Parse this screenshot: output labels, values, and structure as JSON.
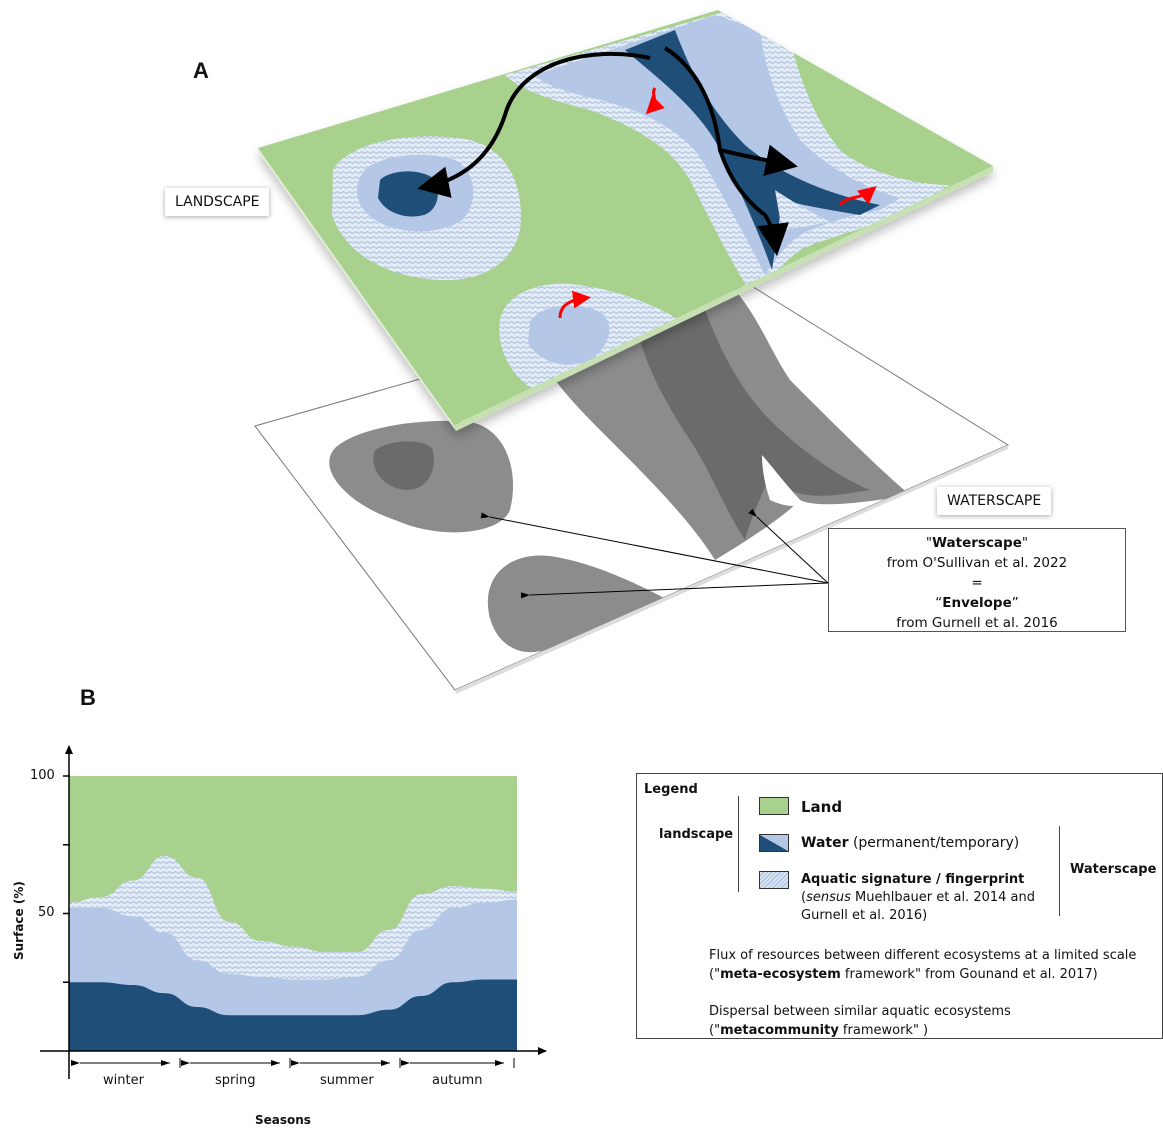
{
  "panels": {
    "a": "A",
    "b": "B"
  },
  "labels": {
    "landscape": "LANDSCAPE",
    "waterscape": "WATERSCAPE"
  },
  "quote": {
    "line1_bold": "Waterscape",
    "line2": "from O'Sullivan et al. 2022",
    "line3": "=",
    "line4_bold": "Envelope",
    "line5": "from Gurnell et al. 2016"
  },
  "colors": {
    "land": "#a9d18e",
    "water_permanent": "#1f4e79",
    "water_temporary": "#b4c7e7",
    "flux_arrow": "#ff0000",
    "dispersal_arrow": "#000000",
    "waterscape_gray": "#8c8c8c"
  },
  "legend": {
    "title": "Legend",
    "group_landscape": "landscape",
    "group_waterscape": "Waterscape",
    "land": "Land",
    "water_bold": "Water",
    "water_rest": "(permanent/temporary)",
    "aquatic_bold": "Aquatic signature / fingerprint",
    "aquatic_sensus": "sensus",
    "aquatic_rest1": "Muehlbauer et al. 2014 and",
    "aquatic_rest2": "Gurnell et al. 2016)",
    "flux_line1": "Flux of resources between different ecosystems at a limited scale",
    "flux_line2_pre": "(\"",
    "flux_line2_bold": "meta-ecosystem",
    "flux_line2_post": " framework\" from Gounand et al. 2017)",
    "dispersal_line1": "Dispersal between similar aquatic ecosystems",
    "dispersal_line2_pre": "(\"",
    "dispersal_line2_bold": "metacommunity",
    "dispersal_line2_post": " framework\" )"
  },
  "chart_data": {
    "type": "area",
    "ylabel": "Surface (%)",
    "xlabel": "Seasons",
    "yticks": [
      "100",
      "50"
    ],
    "ylim": [
      0,
      100
    ],
    "categories": [
      "winter",
      "spring",
      "summer",
      "autumn"
    ],
    "series": [
      {
        "name": "Water (permanent)",
        "color": "#1f4e79",
        "top_values": [
          25,
          25,
          24,
          21,
          16,
          13,
          13,
          13,
          13,
          13,
          15,
          20,
          25,
          26,
          26
        ]
      },
      {
        "name": "Water (temporary)",
        "color": "#b4c7e7",
        "top_values": [
          52,
          52,
          49,
          43,
          33,
          28,
          27,
          26,
          26,
          27,
          33,
          44,
          52,
          54,
          55
        ]
      },
      {
        "name": "Aquatic signature / fingerprint",
        "color": "#dbe6f5",
        "top_values": [
          54,
          56,
          62,
          71,
          63,
          47,
          40,
          38,
          36,
          36,
          44,
          57,
          60,
          59,
          58
        ]
      },
      {
        "name": "Land",
        "color": "#a9d18e",
        "top_values": [
          100,
          100,
          100,
          100,
          100,
          100,
          100,
          100,
          100,
          100,
          100,
          100,
          100,
          100,
          100
        ]
      }
    ]
  }
}
